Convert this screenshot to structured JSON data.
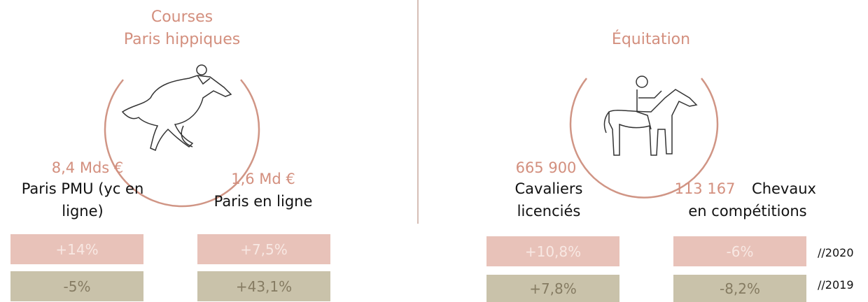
{
  "left": {
    "title_lines": [
      "Courses",
      "Paris hippiques"
    ],
    "stats": [
      {
        "value": "8,4 Mds €",
        "label_lines": [
          "Paris PMU (yc en",
          "ligne)"
        ],
        "change_2020": "+14%",
        "change_2019": "-5%"
      },
      {
        "value": "1,6 Md €",
        "label_lines": [
          "Paris en ligne"
        ],
        "change_2020": "+7,5%",
        "change_2019": "+43,1%"
      }
    ]
  },
  "right": {
    "title_lines": [
      "Équitation"
    ],
    "stats": [
      {
        "value": "665 900",
        "label_lines": [
          "Cavaliers",
          "licenciés"
        ],
        "change_2020": "+10,8%",
        "change_2019": "+7,8%"
      },
      {
        "value": "113 167",
        "label_lines": [
          "Chevaux",
          "en compétitions"
        ],
        "change_2020": "-6%",
        "change_2019": "-8,2%"
      }
    ]
  },
  "legend": {
    "row_2020": "//2020",
    "row_2019": "//2019"
  }
}
